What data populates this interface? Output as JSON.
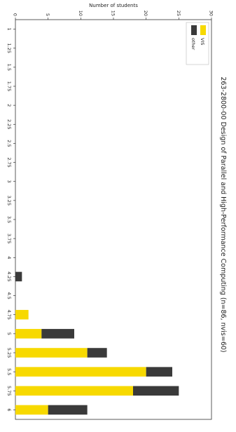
{
  "chart_data": {
    "type": "bar",
    "orientation": "rotated-90",
    "stacked": true,
    "title": "263-2800-00 Design of Parallel and High-Performance Computing (n=86, nvis=60)",
    "xlabel": "",
    "ylabel": "Number of students",
    "categories": [
      "1",
      "1.25",
      "1.5",
      "1.75",
      "2",
      "2.25",
      "2.5",
      "2.75",
      "3",
      "3.25",
      "3.5",
      "3.75",
      "4",
      "4.25",
      "4.5",
      "4.75",
      "5",
      "5.25",
      "5.5",
      "5.75",
      "6"
    ],
    "series": [
      {
        "name": "VIS",
        "color": "#f7d900",
        "values": [
          0,
          0,
          0,
          0,
          0,
          0,
          0,
          0,
          0,
          0,
          0,
          0,
          0,
          0,
          0,
          2,
          4,
          11,
          20,
          18,
          5
        ]
      },
      {
        "name": "other",
        "color": "#3a3a3a",
        "values": [
          0,
          0,
          0,
          0,
          0,
          0,
          0,
          0,
          0,
          0,
          0,
          0,
          0,
          1,
          0,
          0,
          5,
          3,
          4,
          7,
          6
        ]
      }
    ],
    "ylim": [
      0,
      30
    ],
    "yticks": [
      0,
      5,
      10,
      15,
      20,
      25,
      30
    ],
    "legend": {
      "position": "top-left",
      "entries": [
        "VIS",
        "other"
      ]
    },
    "grid": false
  }
}
